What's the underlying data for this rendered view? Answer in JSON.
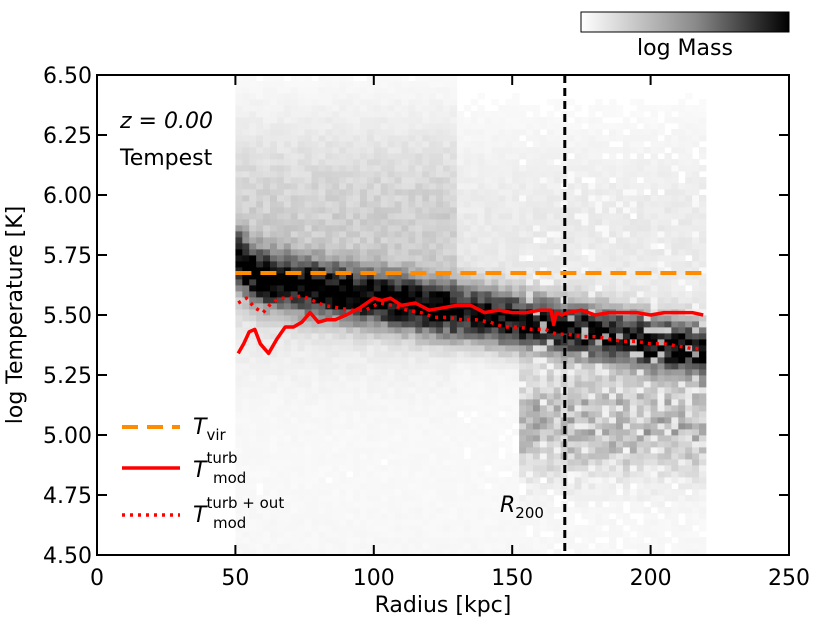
{
  "chart_data": {
    "type": "line",
    "title": "",
    "xlabel": "Radius [kpc]",
    "ylabel": "log Temperature [K]",
    "xlim": [
      0,
      250
    ],
    "ylim": [
      4.5,
      6.5
    ],
    "xticks": [
      "0",
      "50",
      "100",
      "150",
      "200",
      "250"
    ],
    "xtick_values": [
      0,
      50,
      100,
      150,
      200,
      250
    ],
    "yticks": [
      "4.50",
      "4.75",
      "5.00",
      "5.25",
      "5.50",
      "5.75",
      "6.00",
      "6.25",
      "6.50"
    ],
    "ytick_values": [
      4.5,
      4.75,
      5.0,
      5.25,
      5.5,
      5.75,
      6.0,
      6.25,
      6.5
    ],
    "grid": false,
    "annotations": {
      "redshift": "z = 0.00",
      "simulation": "Tempest",
      "r200_label": "R",
      "r200_sub": "200",
      "r200_value": 169
    },
    "colorbar": {
      "label": "log Mass",
      "placement": "top-right"
    },
    "legend": {
      "placement": "lower-left",
      "entries": [
        {
          "base": "T",
          "sub": "vir",
          "sup": "",
          "style": "dashed",
          "color": "#ff8c00"
        },
        {
          "base": "T",
          "sub": "mod",
          "sup": "turb",
          "style": "solid",
          "color": "#ff0000"
        },
        {
          "base": "T",
          "sub": "mod",
          "sup": "turb + out",
          "style": "dotted",
          "color": "#ff0000"
        }
      ]
    },
    "series": [
      {
        "name": "T_vir",
        "style": "dashed",
        "color": "#ff8c00",
        "x": [
          50,
          219
        ],
        "y": [
          5.675,
          5.675
        ]
      },
      {
        "name": "T_mod^turb",
        "style": "solid",
        "color": "#ff0000",
        "x": [
          51,
          53,
          55,
          57,
          59,
          62,
          65,
          68,
          71,
          74,
          77,
          80,
          83,
          86,
          90,
          95,
          100,
          103,
          106,
          110,
          115,
          120,
          125,
          130,
          135,
          140,
          145,
          150,
          155,
          160,
          164,
          165,
          166,
          168,
          170,
          175,
          180,
          185,
          190,
          195,
          200,
          205,
          210,
          215,
          219
        ],
        "y": [
          5.34,
          5.38,
          5.43,
          5.44,
          5.38,
          5.34,
          5.4,
          5.45,
          5.45,
          5.47,
          5.51,
          5.47,
          5.48,
          5.48,
          5.5,
          5.53,
          5.57,
          5.56,
          5.57,
          5.54,
          5.55,
          5.52,
          5.53,
          5.54,
          5.54,
          5.51,
          5.52,
          5.51,
          5.51,
          5.52,
          5.52,
          5.46,
          5.51,
          5.5,
          5.51,
          5.52,
          5.5,
          5.51,
          5.51,
          5.51,
          5.5,
          5.51,
          5.51,
          5.51,
          5.5
        ]
      },
      {
        "name": "T_mod^turb+out",
        "style": "dotted",
        "color": "#ff0000",
        "x": [
          51,
          54,
          57,
          60,
          63,
          66,
          70,
          74,
          78,
          82,
          87,
          92,
          97,
          102,
          107,
          112,
          117,
          122,
          127,
          132,
          137,
          142,
          147,
          152,
          157,
          162,
          166,
          170,
          175,
          180,
          185,
          190,
          195,
          200,
          205,
          210,
          215,
          219
        ],
        "y": [
          5.55,
          5.57,
          5.53,
          5.51,
          5.55,
          5.57,
          5.57,
          5.58,
          5.56,
          5.54,
          5.53,
          5.52,
          5.52,
          5.55,
          5.54,
          5.52,
          5.51,
          5.49,
          5.49,
          5.48,
          5.48,
          5.47,
          5.45,
          5.45,
          5.44,
          5.44,
          5.42,
          5.42,
          5.41,
          5.41,
          5.4,
          5.39,
          5.39,
          5.38,
          5.38,
          5.37,
          5.36,
          5.36
        ]
      }
    ]
  }
}
